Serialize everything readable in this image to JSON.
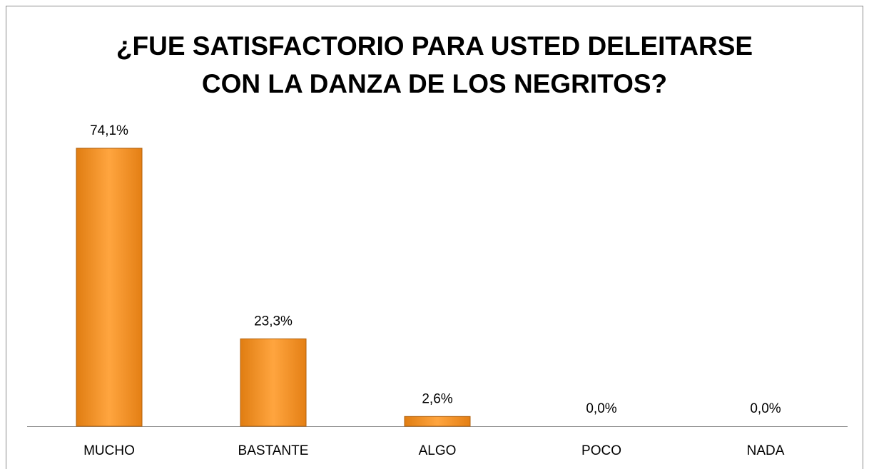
{
  "chart_data": {
    "type": "bar",
    "title": "¿FUE SATISFACTORIO PARA USTED DELEITARSE\nCON LA DANZA DE LOS NEGRITOS?",
    "categories": [
      "MUCHO",
      "BASTANTE",
      "ALGO",
      "POCO",
      "NADA"
    ],
    "values": [
      74.1,
      23.3,
      2.6,
      0,
      0
    ],
    "value_labels": [
      "74,1%",
      "23,3%",
      "2,6%",
      "0,0%",
      "0,0%"
    ],
    "color": "#f7992f"
  }
}
